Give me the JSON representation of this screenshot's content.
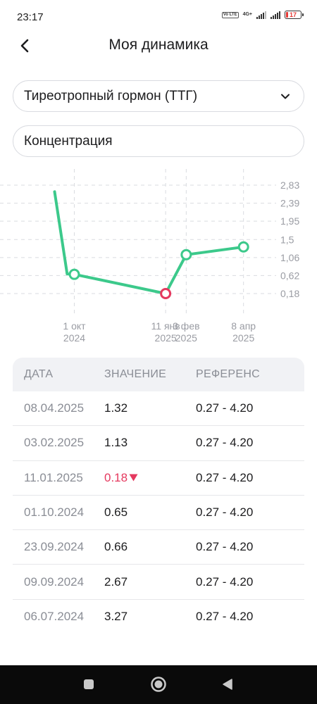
{
  "status_bar": {
    "time": "23:17",
    "volte_label": "Vo LTE",
    "network_label": "4G+",
    "battery_level": 17,
    "battery_text": "17"
  },
  "header": {
    "title": "Моя динамика",
    "back_icon": "chevron-left-icon"
  },
  "filters": {
    "analyte": "Тиреотропный гормон (ТТГ)",
    "analyte_icon": "chevron-down-icon",
    "metric": "Концентрация"
  },
  "colors": {
    "line": "#3cc98b",
    "low_point": "#e5395f",
    "grid": "#d9dbe0",
    "axis_text": "#9a9ca3"
  },
  "chart_data": {
    "type": "line",
    "series": [
      {
        "points": [
          {
            "x": "2024-09-09",
            "y": 2.67
          },
          {
            "x": "2024-09-23",
            "y": 0.66
          },
          {
            "x": "2024-10-01",
            "y": 0.65
          },
          {
            "x": "2025-01-11",
            "y": 0.18
          },
          {
            "x": "2025-02-03",
            "y": 1.13
          },
          {
            "x": "2025-04-08",
            "y": 1.32
          }
        ]
      }
    ],
    "x_ticks": [
      {
        "x": "2024-10-01",
        "line1": "1 окт",
        "line2": "2024"
      },
      {
        "x": "2025-01-11",
        "line1": "11 янв",
        "line2": "2025"
      },
      {
        "x": "2025-02-03",
        "line1": "3 фев",
        "line2": "2025"
      },
      {
        "x": "2025-04-08",
        "line1": "8 апр",
        "line2": "2025"
      }
    ],
    "y_ticks": [
      "2,83",
      "2,39",
      "1,95",
      "1,5",
      "1,06",
      "0,62",
      "0,18"
    ],
    "y_tick_values": [
      2.83,
      2.39,
      1.95,
      1.5,
      1.06,
      0.62,
      0.18
    ],
    "x_range": [
      "2024-07-10",
      "2025-05-05"
    ],
    "ylim": [
      0.18,
      2.83
    ],
    "grid": true,
    "y_axis_position": "right",
    "highlight_low": "2025-01-11",
    "marked_points": [
      "2024-10-01",
      "2025-01-11",
      "2025-02-03",
      "2025-04-08"
    ]
  },
  "table": {
    "headers": {
      "date": "ДАТА",
      "value": "ЗНАЧЕНИЕ",
      "reference": "РЕФЕРЕНС"
    },
    "rows": [
      {
        "date": "08.04.2025",
        "value": "1.32",
        "reference": "0.27 - 4.20",
        "low": false
      },
      {
        "date": "03.02.2025",
        "value": "1.13",
        "reference": "0.27 - 4.20",
        "low": false
      },
      {
        "date": "11.01.2025",
        "value": "0.18",
        "reference": "0.27 - 4.20",
        "low": true
      },
      {
        "date": "01.10.2024",
        "value": "0.65",
        "reference": "0.27 - 4.20",
        "low": false
      },
      {
        "date": "23.09.2024",
        "value": "0.66",
        "reference": "0.27 - 4.20",
        "low": false
      },
      {
        "date": "09.09.2024",
        "value": "2.67",
        "reference": "0.27 - 4.20",
        "low": false
      },
      {
        "date": "06.07.2024",
        "value": "3.27",
        "reference": "0.27 - 4.20",
        "low": false
      }
    ],
    "low_indicator_icon": "triangle-down-icon"
  },
  "nav_bar": {
    "recents_icon": "square-icon",
    "home_icon": "circle-icon",
    "back_icon": "triangle-left-icon"
  }
}
